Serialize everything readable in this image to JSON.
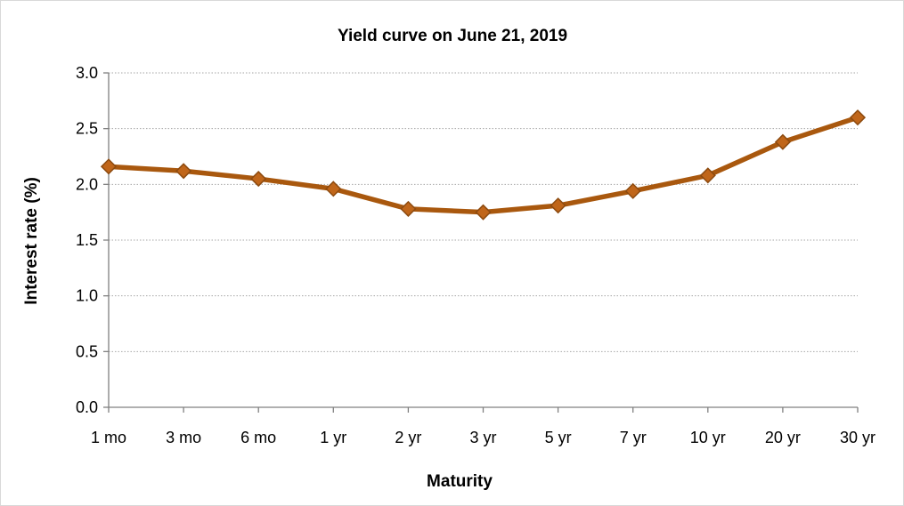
{
  "chart_data": {
    "type": "line",
    "title": "Yield curve on June 21, 2019",
    "xlabel": "Maturity",
    "ylabel": "Interest rate (%)",
    "categories": [
      "1 mo",
      "3 mo",
      "6 mo",
      "1 yr",
      "2 yr",
      "3 yr",
      "5 yr",
      "7 yr",
      "10 yr",
      "20 yr",
      "30 yr"
    ],
    "series": [
      {
        "values": [
          2.16,
          2.12,
          2.05,
          1.96,
          1.78,
          1.75,
          1.81,
          1.94,
          2.08,
          2.38,
          2.6
        ]
      }
    ],
    "ylim": [
      0,
      3.0
    ],
    "yticks": [
      "0.0",
      "0.5",
      "1.0",
      "1.5",
      "2.0",
      "2.5",
      "3.0"
    ],
    "grid": "horizontal dotted",
    "legend": "none",
    "colors": {
      "line": "#a9580e",
      "marker_fill": "#c0661a",
      "marker_stroke": "#8c4a0f"
    }
  }
}
